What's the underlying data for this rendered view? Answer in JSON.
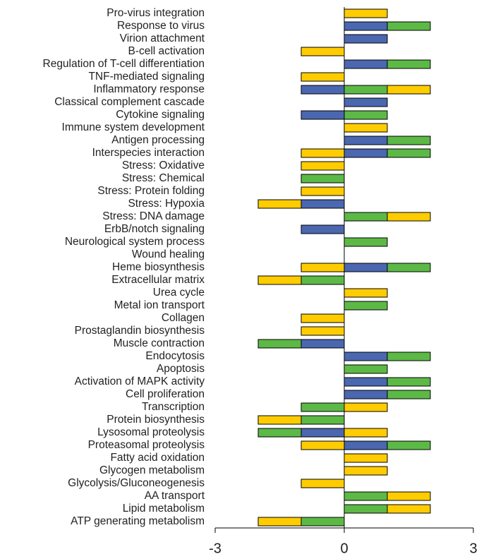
{
  "chart_data": {
    "type": "diverging_stacked_bar",
    "categories": [
      "Pro-virus integration",
      "Response to virus",
      "Virion attachment",
      "B-cell activation",
      "Regulation of T-cell differentiation",
      "TNF-mediated signaling",
      "Inflammatory response",
      "Classical complement cascade",
      "Cytokine signaling",
      "Immune system development",
      "Antigen processing",
      "Interspecies interaction",
      "Stress: Oxidative",
      "Stress: Chemical",
      "Stress: Protein folding",
      "Stress: Hypoxia",
      "Stress: DNA damage",
      "ErbB/notch signaling",
      "Neurological system process",
      "Wound healing",
      "Heme biosynthesis",
      "Extracellular matrix",
      "Urea cycle",
      "Metal ion transport",
      "Collagen",
      "Prostaglandin biosynthesis",
      "Muscle contraction",
      "Endocytosis",
      "Apoptosis",
      "Activation of MAPK activity",
      "Cell proliferation",
      "Transcription",
      "Protein biosynthesis",
      "Lysosomal proteolysis",
      "Proteasomal proteolysis",
      "Fatty acid oxidation",
      "Glycogen metabolism",
      "Glycolysis/Gluconeogenesis",
      "AA transport",
      "Lipid metabolism",
      "ATP generating metabolism"
    ],
    "series": [
      {
        "color": "#4a67b0",
        "values": [
          0,
          1,
          1,
          0,
          1,
          0,
          -1,
          1,
          -1,
          0,
          1,
          1,
          0,
          0,
          0,
          -1,
          0,
          -1,
          0,
          0,
          1,
          0,
          0,
          0,
          0,
          0,
          -1,
          1,
          0,
          1,
          1,
          0,
          0,
          -1,
          1,
          0,
          0,
          0,
          0,
          0,
          0
        ]
      },
      {
        "color": "#5cb946",
        "values": [
          0,
          1,
          0,
          0,
          1,
          0,
          1,
          0,
          1,
          0,
          1,
          1,
          0,
          -1,
          0,
          0,
          1,
          0,
          1,
          0,
          1,
          -1,
          0,
          1,
          0,
          0,
          -1,
          1,
          1,
          1,
          1,
          -1,
          -1,
          -1,
          1,
          0,
          0,
          0,
          1,
          1,
          -1
        ]
      },
      {
        "color": "#ffcc00",
        "values": [
          1,
          0,
          0,
          -1,
          0,
          -1,
          1,
          0,
          0,
          1,
          0,
          -1,
          -1,
          0,
          -1,
          -1,
          1,
          0,
          0,
          0,
          -1,
          -1,
          1,
          0,
          -1,
          -1,
          0,
          0,
          0,
          0,
          0,
          1,
          -1,
          1,
          -1,
          1,
          1,
          -1,
          1,
          1,
          -1
        ]
      }
    ],
    "xlim": [
      -3,
      3
    ],
    "xticks": [
      -3,
      0,
      3
    ]
  }
}
